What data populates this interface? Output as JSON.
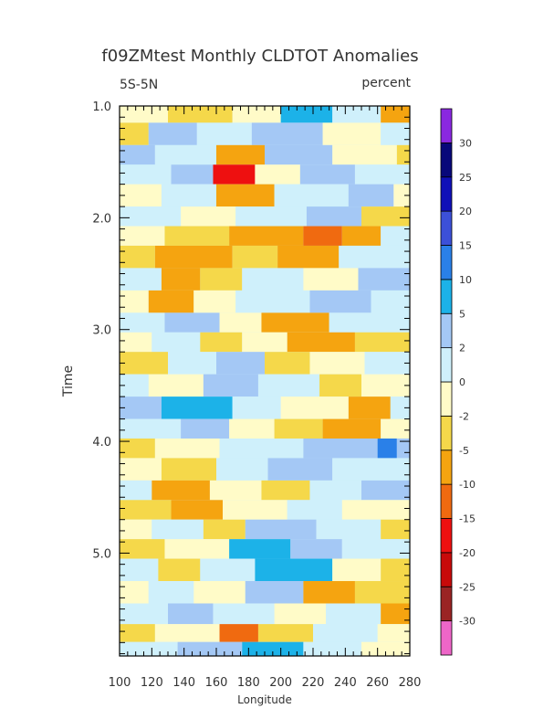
{
  "chart_data": {
    "type": "heatmap",
    "title": "f09ZMtest Monthly CLDTOT Anomalies",
    "region_label": "5S-5N",
    "units_label": "percent",
    "xlabel": "Longitude",
    "ylabel": "Time",
    "xlim": [
      100,
      280
    ],
    "ylim": [
      1.0,
      5.92
    ],
    "x_ticks": [
      100,
      120,
      140,
      160,
      180,
      200,
      220,
      240,
      260,
      280
    ],
    "x_tick_labels": [
      "100",
      "120",
      "140",
      "160",
      "180",
      "200",
      "220",
      "240",
      "260",
      "280"
    ],
    "y_ticks": [
      1.0,
      2.0,
      3.0,
      4.0,
      5.0
    ],
    "y_tick_labels": [
      "1.0",
      "2.0",
      "3.0",
      "4.0",
      "5.0"
    ],
    "y_inverted": true,
    "grid": false,
    "colorbar": {
      "placement": "right",
      "levels": [
        -30,
        -25,
        -20,
        -15,
        -10,
        -5,
        -2,
        0,
        2,
        5,
        10,
        15,
        20,
        25,
        30
      ],
      "level_labels": [
        "-30",
        "-25",
        "-20",
        "-15",
        "-10",
        "-5",
        "-2",
        "0",
        "2",
        "5",
        "10",
        "15",
        "20",
        "25",
        "30"
      ],
      "colors_low_to_high": [
        "#ee66c8",
        "#9a2424",
        "#c80a0a",
        "#ee1010",
        "#f06a10",
        "#f5a410",
        "#f5d84a",
        "#fffbc8",
        "#cff0fb",
        "#a4c8f5",
        "#1cb2e8",
        "#2a80e8",
        "#3c50d8",
        "#1010b8",
        "#08087a",
        "#8a28e0"
      ]
    },
    "bands": [
      {
        "y": 1.05,
        "segments": [
          [
            100,
            130,
            0
          ],
          [
            130,
            170,
            -1
          ],
          [
            170,
            200,
            0
          ],
          [
            200,
            232,
            3
          ],
          [
            232,
            262,
            1
          ],
          [
            262,
            280,
            -2
          ]
        ]
      },
      {
        "y": 1.25,
        "segments": [
          [
            100,
            118,
            -1
          ],
          [
            118,
            148,
            2
          ],
          [
            148,
            182,
            1
          ],
          [
            182,
            226,
            2
          ],
          [
            226,
            262,
            0
          ],
          [
            262,
            280,
            1
          ]
        ]
      },
      {
        "y": 1.45,
        "segments": [
          [
            100,
            122,
            2
          ],
          [
            122,
            160,
            1
          ],
          [
            160,
            190,
            -2
          ],
          [
            190,
            232,
            2
          ],
          [
            232,
            272,
            0
          ],
          [
            272,
            280,
            -1
          ]
        ]
      },
      {
        "y": 1.6,
        "segments": [
          [
            100,
            132,
            1
          ],
          [
            132,
            158,
            2
          ],
          [
            158,
            184,
            -4
          ],
          [
            184,
            212,
            0
          ],
          [
            212,
            246,
            2
          ],
          [
            246,
            280,
            1
          ]
        ]
      },
      {
        "y": 1.8,
        "segments": [
          [
            100,
            126,
            0
          ],
          [
            126,
            160,
            1
          ],
          [
            160,
            196,
            -2
          ],
          [
            196,
            242,
            1
          ],
          [
            242,
            270,
            2
          ],
          [
            270,
            280,
            0
          ]
        ]
      },
      {
        "y": 2.0,
        "segments": [
          [
            100,
            138,
            1
          ],
          [
            138,
            172,
            0
          ],
          [
            172,
            216,
            1
          ],
          [
            216,
            250,
            2
          ],
          [
            250,
            280,
            -1
          ]
        ]
      },
      {
        "y": 2.15,
        "segments": [
          [
            100,
            128,
            0
          ],
          [
            128,
            168,
            -1
          ],
          [
            168,
            214,
            -2
          ],
          [
            214,
            238,
            -3
          ],
          [
            238,
            262,
            -2
          ],
          [
            262,
            280,
            1
          ]
        ]
      },
      {
        "y": 2.35,
        "segments": [
          [
            100,
            122,
            -1
          ],
          [
            122,
            170,
            -2
          ],
          [
            170,
            198,
            -1
          ],
          [
            198,
            236,
            -2
          ],
          [
            236,
            280,
            1
          ]
        ]
      },
      {
        "y": 2.55,
        "segments": [
          [
            100,
            126,
            1
          ],
          [
            126,
            150,
            -2
          ],
          [
            150,
            176,
            -1
          ],
          [
            176,
            214,
            1
          ],
          [
            214,
            248,
            0
          ],
          [
            248,
            280,
            2
          ]
        ]
      },
      {
        "y": 2.75,
        "segments": [
          [
            100,
            118,
            0
          ],
          [
            118,
            146,
            -2
          ],
          [
            146,
            172,
            0
          ],
          [
            172,
            218,
            1
          ],
          [
            218,
            256,
            2
          ],
          [
            256,
            280,
            1
          ]
        ]
      },
      {
        "y": 2.95,
        "segments": [
          [
            100,
            128,
            1
          ],
          [
            128,
            162,
            2
          ],
          [
            162,
            188,
            0
          ],
          [
            188,
            230,
            -2
          ],
          [
            230,
            280,
            1
          ]
        ]
      },
      {
        "y": 3.1,
        "segments": [
          [
            100,
            120,
            0
          ],
          [
            120,
            150,
            1
          ],
          [
            150,
            176,
            -1
          ],
          [
            176,
            204,
            0
          ],
          [
            204,
            246,
            -2
          ],
          [
            246,
            280,
            -1
          ]
        ]
      },
      {
        "y": 3.3,
        "segments": [
          [
            100,
            130,
            -1
          ],
          [
            130,
            160,
            1
          ],
          [
            160,
            190,
            2
          ],
          [
            190,
            218,
            -1
          ],
          [
            218,
            252,
            0
          ],
          [
            252,
            280,
            1
          ]
        ]
      },
      {
        "y": 3.5,
        "segments": [
          [
            100,
            118,
            1
          ],
          [
            118,
            152,
            0
          ],
          [
            152,
            186,
            2
          ],
          [
            186,
            224,
            1
          ],
          [
            224,
            250,
            -1
          ],
          [
            250,
            280,
            0
          ]
        ]
      },
      {
        "y": 3.7,
        "segments": [
          [
            100,
            126,
            2
          ],
          [
            126,
            170,
            3
          ],
          [
            170,
            200,
            1
          ],
          [
            200,
            242,
            0
          ],
          [
            242,
            268,
            -2
          ],
          [
            268,
            280,
            1
          ]
        ]
      },
      {
        "y": 3.9,
        "segments": [
          [
            100,
            138,
            1
          ],
          [
            138,
            168,
            2
          ],
          [
            168,
            196,
            0
          ],
          [
            196,
            226,
            -1
          ],
          [
            226,
            262,
            -2
          ],
          [
            262,
            280,
            0
          ]
        ]
      },
      {
        "y": 4.05,
        "segments": [
          [
            100,
            122,
            -1
          ],
          [
            122,
            162,
            0
          ],
          [
            162,
            214,
            1
          ],
          [
            214,
            260,
            2
          ],
          [
            260,
            272,
            4
          ],
          [
            272,
            280,
            2
          ]
        ]
      },
      {
        "y": 4.25,
        "segments": [
          [
            100,
            126,
            0
          ],
          [
            126,
            160,
            -1
          ],
          [
            160,
            192,
            1
          ],
          [
            192,
            232,
            2
          ],
          [
            232,
            280,
            1
          ]
        ]
      },
      {
        "y": 4.45,
        "segments": [
          [
            100,
            120,
            1
          ],
          [
            120,
            156,
            -2
          ],
          [
            156,
            188,
            0
          ],
          [
            188,
            218,
            -1
          ],
          [
            218,
            250,
            1
          ],
          [
            250,
            280,
            2
          ]
        ]
      },
      {
        "y": 4.6,
        "segments": [
          [
            100,
            132,
            -1
          ],
          [
            132,
            164,
            -2
          ],
          [
            164,
            204,
            0
          ],
          [
            204,
            238,
            1
          ],
          [
            238,
            280,
            0
          ]
        ]
      },
      {
        "y": 4.8,
        "segments": [
          [
            100,
            120,
            0
          ],
          [
            120,
            152,
            1
          ],
          [
            152,
            178,
            -1
          ],
          [
            178,
            222,
            2
          ],
          [
            222,
            262,
            1
          ],
          [
            262,
            280,
            -1
          ]
        ]
      },
      {
        "y": 4.95,
        "segments": [
          [
            100,
            128,
            -1
          ],
          [
            128,
            168,
            0
          ],
          [
            168,
            206,
            3
          ],
          [
            206,
            238,
            2
          ],
          [
            238,
            280,
            1
          ]
        ]
      },
      {
        "y": 5.15,
        "segments": [
          [
            100,
            124,
            1
          ],
          [
            124,
            150,
            -1
          ],
          [
            150,
            184,
            1
          ],
          [
            184,
            232,
            3
          ],
          [
            232,
            262,
            0
          ],
          [
            262,
            280,
            -1
          ]
        ]
      },
      {
        "y": 5.35,
        "segments": [
          [
            100,
            118,
            0
          ],
          [
            118,
            146,
            1
          ],
          [
            146,
            178,
            0
          ],
          [
            178,
            214,
            2
          ],
          [
            214,
            246,
            -2
          ],
          [
            246,
            280,
            -1
          ]
        ]
      },
      {
        "y": 5.55,
        "segments": [
          [
            100,
            130,
            1
          ],
          [
            130,
            158,
            2
          ],
          [
            158,
            196,
            1
          ],
          [
            196,
            228,
            0
          ],
          [
            228,
            262,
            1
          ],
          [
            262,
            280,
            -2
          ]
        ]
      },
      {
        "y": 5.72,
        "segments": [
          [
            100,
            122,
            -1
          ],
          [
            122,
            162,
            0
          ],
          [
            162,
            186,
            -3
          ],
          [
            186,
            220,
            -1
          ],
          [
            220,
            260,
            1
          ],
          [
            260,
            280,
            0
          ]
        ]
      },
      {
        "y": 5.87,
        "segments": [
          [
            100,
            136,
            1
          ],
          [
            136,
            176,
            2
          ],
          [
            176,
            214,
            3
          ],
          [
            214,
            250,
            1
          ],
          [
            250,
            280,
            0
          ]
        ]
      }
    ]
  }
}
